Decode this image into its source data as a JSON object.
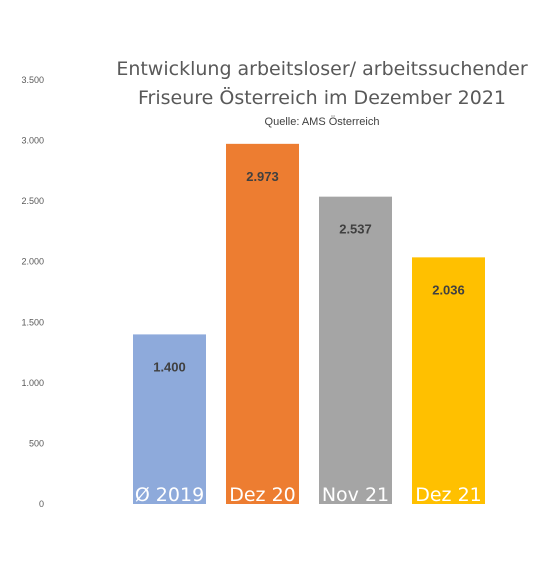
{
  "chart_data": {
    "type": "bar",
    "title_line1": "Entwicklung arbeitsloser/ arbeitssuchender",
    "title_line2": "Friseure Österreich im Dezember 2021",
    "subtitle": "Quelle: AMS Österreich",
    "categories": [
      "Ø 2019",
      "Dez 20",
      "Nov 21",
      "Dez 21"
    ],
    "values": [
      1400,
      2973,
      2537,
      2036
    ],
    "data_labels": [
      "1.400",
      "2.973",
      "2.537",
      "2.036"
    ],
    "colors": [
      "#8eaadb",
      "#ed7d31",
      "#a5a5a5",
      "#ffc000"
    ],
    "ylim": [
      0,
      3500
    ],
    "yticks": [
      0,
      500,
      1000,
      1500,
      2000,
      2500,
      3000,
      3500
    ],
    "ytick_labels": [
      "0",
      "500",
      "1.000",
      "1.500",
      "2.000",
      "2.500",
      "3.000",
      "3.500"
    ],
    "grid": false,
    "legend": "none"
  }
}
